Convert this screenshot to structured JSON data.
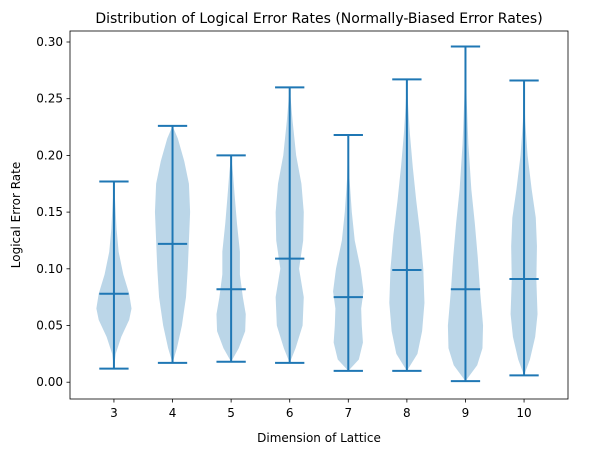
{
  "chart_data": {
    "type": "violin",
    "title": "Distribution of Logical Error Rates (Normally-Biased Error Rates)",
    "xlabel": "Dimension of Lattice",
    "ylabel": "Logical Error Rate",
    "categories": [
      "3",
      "4",
      "5",
      "6",
      "7",
      "8",
      "9",
      "10"
    ],
    "xlim": [
      2.25,
      10.75
    ],
    "ylim": [
      -0.0148,
      0.3097
    ],
    "yticks": [
      0.0,
      0.05,
      0.1,
      0.15,
      0.2,
      0.25,
      0.3
    ],
    "ytick_labels": [
      "0.00",
      "0.05",
      "0.10",
      "0.15",
      "0.20",
      "0.25",
      "0.30"
    ],
    "grid": false,
    "legend": "none",
    "colors": {
      "body": "#1f77b4",
      "body_opacity": 0.3,
      "lines": "#1f77b4"
    },
    "violins": [
      {
        "x": "3",
        "min": 0.012,
        "mean": 0.078,
        "max": 0.177,
        "profile": [
          [
            0.012,
            0.0
          ],
          [
            0.025,
            0.03
          ],
          [
            0.04,
            0.125
          ],
          [
            0.055,
            0.26
          ],
          [
            0.065,
            0.3
          ],
          [
            0.078,
            0.26
          ],
          [
            0.095,
            0.16
          ],
          [
            0.115,
            0.08
          ],
          [
            0.135,
            0.045
          ],
          [
            0.155,
            0.025
          ],
          [
            0.177,
            0.0
          ]
        ]
      },
      {
        "x": "4",
        "min": 0.017,
        "mean": 0.122,
        "max": 0.226,
        "profile": [
          [
            0.017,
            0.0
          ],
          [
            0.03,
            0.075
          ],
          [
            0.05,
            0.16
          ],
          [
            0.075,
            0.23
          ],
          [
            0.1,
            0.26
          ],
          [
            0.125,
            0.28
          ],
          [
            0.15,
            0.3
          ],
          [
            0.175,
            0.28
          ],
          [
            0.195,
            0.2
          ],
          [
            0.215,
            0.09
          ],
          [
            0.226,
            0.0
          ]
        ]
      },
      {
        "x": "5",
        "min": 0.018,
        "mean": 0.082,
        "max": 0.2,
        "profile": [
          [
            0.018,
            0.0
          ],
          [
            0.03,
            0.13
          ],
          [
            0.045,
            0.24
          ],
          [
            0.06,
            0.25
          ],
          [
            0.075,
            0.2
          ],
          [
            0.095,
            0.15
          ],
          [
            0.115,
            0.15
          ],
          [
            0.14,
            0.1
          ],
          [
            0.165,
            0.06
          ],
          [
            0.185,
            0.03
          ],
          [
            0.2,
            0.0
          ]
        ]
      },
      {
        "x": "6",
        "min": 0.017,
        "mean": 0.109,
        "max": 0.26,
        "profile": [
          [
            0.017,
            0.0
          ],
          [
            0.03,
            0.1
          ],
          [
            0.05,
            0.22
          ],
          [
            0.075,
            0.24
          ],
          [
            0.1,
            0.16
          ],
          [
            0.125,
            0.23
          ],
          [
            0.15,
            0.24
          ],
          [
            0.175,
            0.2
          ],
          [
            0.2,
            0.11
          ],
          [
            0.23,
            0.05
          ],
          [
            0.26,
            0.0
          ]
        ]
      },
      {
        "x": "7",
        "min": 0.01,
        "mean": 0.075,
        "max": 0.218,
        "profile": [
          [
            0.01,
            0.0
          ],
          [
            0.02,
            0.18
          ],
          [
            0.035,
            0.25
          ],
          [
            0.05,
            0.23
          ],
          [
            0.065,
            0.22
          ],
          [
            0.08,
            0.26
          ],
          [
            0.1,
            0.21
          ],
          [
            0.125,
            0.11
          ],
          [
            0.15,
            0.06
          ],
          [
            0.18,
            0.02
          ],
          [
            0.218,
            0.0
          ]
        ]
      },
      {
        "x": "8",
        "min": 0.01,
        "mean": 0.099,
        "max": 0.267,
        "profile": [
          [
            0.01,
            0.0
          ],
          [
            0.025,
            0.18
          ],
          [
            0.045,
            0.26
          ],
          [
            0.07,
            0.3
          ],
          [
            0.1,
            0.28
          ],
          [
            0.13,
            0.23
          ],
          [
            0.16,
            0.16
          ],
          [
            0.19,
            0.1
          ],
          [
            0.22,
            0.05
          ],
          [
            0.245,
            0.02
          ],
          [
            0.267,
            0.0
          ]
        ]
      },
      {
        "x": "9",
        "min": 0.001,
        "mean": 0.082,
        "max": 0.296,
        "profile": [
          [
            0.001,
            0.0
          ],
          [
            0.015,
            0.2
          ],
          [
            0.03,
            0.29
          ],
          [
            0.05,
            0.3
          ],
          [
            0.08,
            0.25
          ],
          [
            0.11,
            0.21
          ],
          [
            0.14,
            0.16
          ],
          [
            0.17,
            0.1
          ],
          [
            0.21,
            0.05
          ],
          [
            0.25,
            0.02
          ],
          [
            0.296,
            0.0
          ]
        ]
      },
      {
        "x": "10",
        "min": 0.006,
        "mean": 0.091,
        "max": 0.266,
        "profile": [
          [
            0.006,
            0.0
          ],
          [
            0.02,
            0.1
          ],
          [
            0.04,
            0.19
          ],
          [
            0.06,
            0.23
          ],
          [
            0.09,
            0.21
          ],
          [
            0.12,
            0.22
          ],
          [
            0.145,
            0.2
          ],
          [
            0.17,
            0.13
          ],
          [
            0.2,
            0.06
          ],
          [
            0.23,
            0.02
          ],
          [
            0.266,
            0.0
          ]
        ]
      }
    ]
  }
}
